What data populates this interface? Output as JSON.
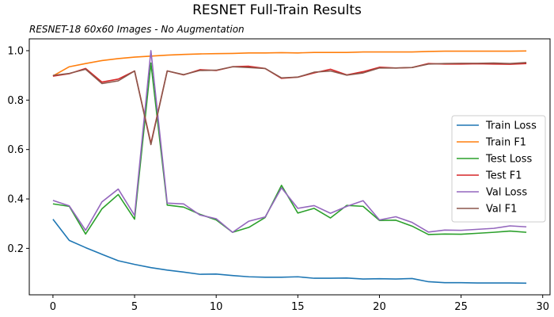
{
  "chart_data": {
    "type": "line",
    "title": "RESNET Full-Train Results",
    "subtitle": "RESNET-18 60x60 Images - No Augmentation",
    "xlabel": "",
    "ylabel": "",
    "xlim": [
      -1.45,
      30.45
    ],
    "ylim": [
      0.012,
      1.048
    ],
    "xticks": [
      0,
      5,
      10,
      15,
      20,
      25,
      30
    ],
    "yticks": [
      0.2,
      0.4,
      0.6,
      0.8,
      1.0
    ],
    "grid": false,
    "legend_position": "center-right",
    "x": [
      0,
      1,
      2,
      3,
      4,
      5,
      6,
      7,
      8,
      9,
      10,
      11,
      12,
      13,
      14,
      15,
      16,
      17,
      18,
      19,
      20,
      21,
      22,
      23,
      24,
      25,
      26,
      27,
      28,
      29
    ],
    "series": [
      {
        "name": "Train Loss",
        "color": "#1f77b4",
        "values": [
          0.318,
          0.232,
          0.203,
          0.176,
          0.15,
          0.135,
          0.122,
          0.112,
          0.104,
          0.095,
          0.096,
          0.09,
          0.085,
          0.083,
          0.083,
          0.085,
          0.079,
          0.079,
          0.08,
          0.076,
          0.077,
          0.076,
          0.078,
          0.065,
          0.061,
          0.061,
          0.06,
          0.06,
          0.06,
          0.059
        ]
      },
      {
        "name": "Train F1",
        "color": "#ff7f0e",
        "values": [
          0.898,
          0.935,
          0.948,
          0.96,
          0.968,
          0.974,
          0.978,
          0.982,
          0.985,
          0.987,
          0.988,
          0.989,
          0.991,
          0.991,
          0.992,
          0.991,
          0.993,
          0.993,
          0.993,
          0.995,
          0.995,
          0.995,
          0.995,
          0.997,
          0.998,
          0.998,
          0.998,
          0.998,
          0.998,
          0.999
        ]
      },
      {
        "name": "Test Loss",
        "color": "#2ca02c",
        "values": [
          0.38,
          0.37,
          0.258,
          0.36,
          0.418,
          0.318,
          0.95,
          0.375,
          0.367,
          0.338,
          0.315,
          0.265,
          0.285,
          0.325,
          0.455,
          0.343,
          0.362,
          0.323,
          0.374,
          0.37,
          0.313,
          0.314,
          0.29,
          0.256,
          0.258,
          0.257,
          0.261,
          0.265,
          0.27,
          0.265
        ]
      },
      {
        "name": "Test F1",
        "color": "#d62728",
        "values": [
          0.897,
          0.907,
          0.928,
          0.873,
          0.885,
          0.918,
          0.625,
          0.918,
          0.902,
          0.923,
          0.92,
          0.935,
          0.937,
          0.928,
          0.888,
          0.893,
          0.91,
          0.925,
          0.902,
          0.915,
          0.933,
          0.93,
          0.932,
          0.948,
          0.946,
          0.946,
          0.947,
          0.946,
          0.945,
          0.948
        ]
      },
      {
        "name": "Val Loss",
        "color": "#9467bd",
        "values": [
          0.394,
          0.372,
          0.273,
          0.388,
          0.44,
          0.333,
          1.0,
          0.383,
          0.38,
          0.335,
          0.32,
          0.265,
          0.31,
          0.327,
          0.445,
          0.362,
          0.373,
          0.342,
          0.37,
          0.393,
          0.315,
          0.328,
          0.305,
          0.266,
          0.274,
          0.273,
          0.277,
          0.281,
          0.291,
          0.287
        ]
      },
      {
        "name": "Val F1",
        "color": "#8c564b",
        "values": [
          0.9,
          0.908,
          0.925,
          0.867,
          0.878,
          0.918,
          0.62,
          0.918,
          0.903,
          0.92,
          0.921,
          0.935,
          0.932,
          0.928,
          0.89,
          0.893,
          0.913,
          0.918,
          0.901,
          0.91,
          0.93,
          0.93,
          0.932,
          0.946,
          0.948,
          0.949,
          0.949,
          0.95,
          0.948,
          0.952
        ]
      }
    ]
  }
}
